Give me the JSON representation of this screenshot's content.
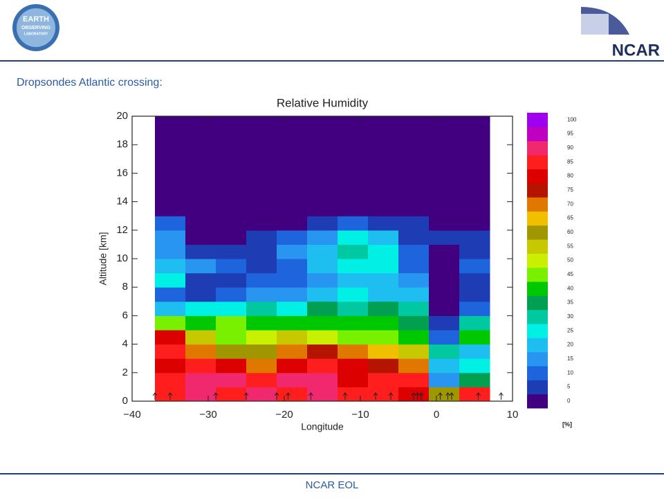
{
  "header": {
    "logo_lines": [
      "EARTH",
      "OBSERVING",
      "LABORATORY"
    ],
    "brand": "NCAR"
  },
  "slide_title": "Dropsondes Atlantic crossing:",
  "footer": "NCAR EOL",
  "chart_data": {
    "type": "contour",
    "title": "Relative Humidity",
    "x_label": "Longitude",
    "y_label": "Altitude [km]",
    "colorbar_label": "[%]",
    "xlim": [
      -40,
      10
    ],
    "xticks": [
      {
        "value": -40,
        "label": "−40"
      },
      {
        "value": -30,
        "label": "−30"
      },
      {
        "value": -20,
        "label": "−20"
      },
      {
        "value": -10,
        "label": "−10"
      },
      0,
      10
    ],
    "ylim": [
      0,
      20
    ],
    "yticks": [
      0,
      2,
      4,
      6,
      8,
      10,
      12,
      14,
      16,
      18,
      20
    ],
    "x": [
      -35,
      -31,
      -27,
      -23,
      -19,
      -15,
      -11,
      -7,
      -3,
      1,
      5
    ],
    "y": [
      0.5,
      1.5,
      2.5,
      3.5,
      4.5,
      5.5,
      6.5,
      7.5,
      8.5,
      9.5,
      10.5,
      11.5,
      12.5,
      13.5,
      14.5,
      15.5,
      16.5,
      17.5,
      18.5,
      19.5
    ],
    "values": [
      [
        88,
        92,
        88,
        92,
        88,
        92,
        88,
        88,
        82,
        60,
        88
      ],
      [
        88,
        90,
        92,
        88,
        90,
        92,
        82,
        88,
        85,
        15,
        35
      ],
      [
        82,
        85,
        82,
        72,
        80,
        85,
        80,
        75,
        70,
        22,
        25
      ],
      [
        85,
        70,
        62,
        62,
        70,
        75,
        70,
        65,
        55,
        30,
        20
      ],
      [
        80,
        55,
        45,
        52,
        55,
        50,
        45,
        45,
        40,
        10,
        40
      ],
      [
        45,
        42,
        48,
        42,
        40,
        42,
        40,
        42,
        35,
        5,
        30
      ],
      [
        22,
        25,
        28,
        30,
        25,
        35,
        30,
        35,
        30,
        2,
        10
      ],
      [
        12,
        8,
        10,
        15,
        18,
        22,
        25,
        22,
        20,
        2,
        8
      ],
      [
        28,
        5,
        8,
        12,
        12,
        18,
        22,
        20,
        15,
        2,
        5
      ],
      [
        22,
        18,
        10,
        8,
        10,
        20,
        28,
        25,
        10,
        2,
        12
      ],
      [
        18,
        8,
        5,
        8,
        15,
        22,
        32,
        28,
        12,
        4,
        8
      ],
      [
        15,
        3,
        2,
        5,
        10,
        18,
        28,
        22,
        8,
        5,
        6
      ],
      [
        10,
        2,
        2,
        2,
        3,
        8,
        10,
        8,
        5,
        3,
        2
      ],
      [
        2,
        2,
        2,
        2,
        2,
        2,
        2,
        2,
        2,
        2,
        2
      ],
      [
        2,
        2,
        2,
        2,
        2,
        2,
        2,
        2,
        2,
        2,
        2
      ],
      [
        2,
        2,
        2,
        2,
        2,
        2,
        2,
        2,
        2,
        2,
        2
      ],
      [
        2,
        2,
        2,
        2,
        2,
        2,
        2,
        2,
        2,
        2,
        2
      ],
      [
        2,
        2,
        2,
        2,
        2,
        2,
        2,
        2,
        2,
        2,
        2
      ],
      [
        2,
        2,
        2,
        2,
        2,
        2,
        2,
        2,
        2,
        2,
        2
      ],
      [
        2,
        2,
        2,
        2,
        2,
        2,
        2,
        2,
        2,
        2,
        2
      ]
    ],
    "levels": [
      0,
      5,
      10,
      15,
      20,
      25,
      30,
      35,
      40,
      45,
      50,
      55,
      60,
      65,
      70,
      75,
      80,
      85,
      90,
      95,
      100
    ],
    "colors": [
      "#400080",
      "#1e3cb4",
      "#1e64dc",
      "#2896f0",
      "#1ebef0",
      "#00f0e6",
      "#00c8a0",
      "#00a050",
      "#00c800",
      "#78f000",
      "#c8f000",
      "#c8c800",
      "#a09600",
      "#f0c000",
      "#e07800",
      "#b41400",
      "#dc0000",
      "#ff1e1e",
      "#f0286e",
      "#c000c0",
      "#a000f0"
    ],
    "sonde_longitudes": [
      -37,
      -35,
      -29,
      -25,
      -21,
      -19.5,
      -16.5,
      -12,
      -8,
      -6,
      -3,
      -2.5,
      -2,
      0.5,
      1.5,
      2,
      5.5,
      8.5
    ]
  }
}
